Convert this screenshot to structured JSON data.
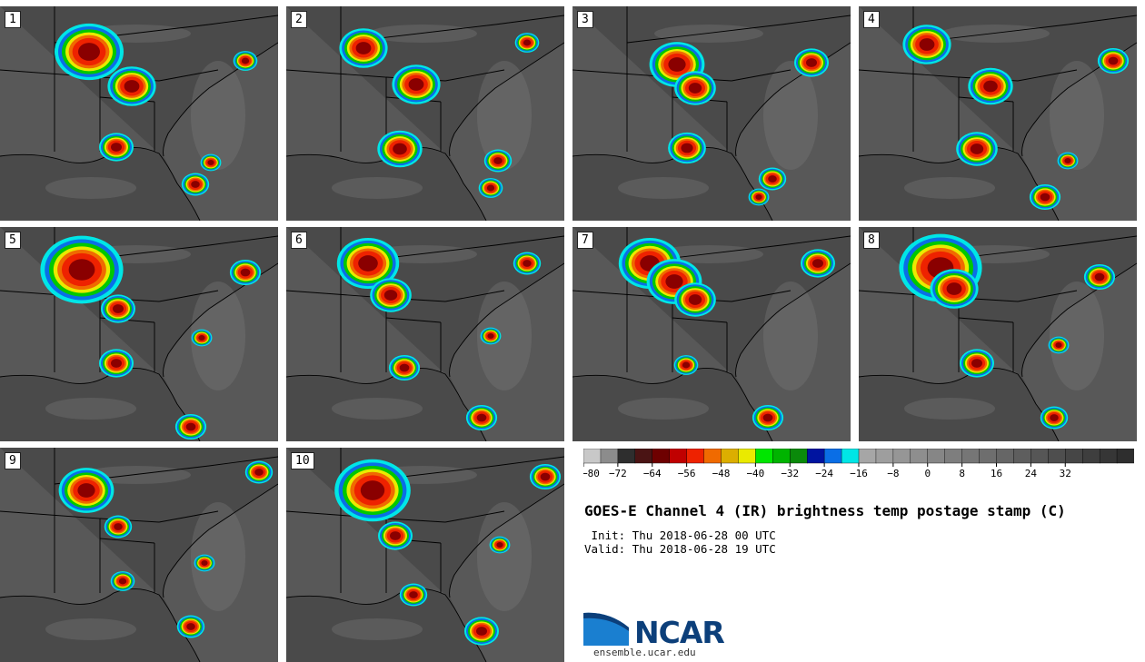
{
  "panels": [
    {
      "label": "1"
    },
    {
      "label": "2"
    },
    {
      "label": "3"
    },
    {
      "label": "4"
    },
    {
      "label": "5"
    },
    {
      "label": "6"
    },
    {
      "label": "7"
    },
    {
      "label": "8"
    },
    {
      "label": "9"
    },
    {
      "label": "10"
    }
  ],
  "colorbar": {
    "colors": [
      "#c8c8c8",
      "#8c8c8c",
      "#2e2e2e",
      "#4a1414",
      "#6e0000",
      "#c00000",
      "#ee2200",
      "#f06a00",
      "#dcae00",
      "#eaea00",
      "#00e600",
      "#00b400",
      "#0a8a0a",
      "#0014a0",
      "#0a6ee6",
      "#00e6e6",
      "#a6a6a6",
      "#9e9e9e",
      "#969696",
      "#8e8e8e",
      "#868686",
      "#7e7e7e",
      "#767676",
      "#6e6e6e",
      "#666666",
      "#5e5e5e",
      "#565656",
      "#4e4e4e",
      "#464646",
      "#3e3e3e",
      "#363636",
      "#2e2e2e"
    ],
    "tick_labels": [
      "−80",
      "−72",
      "−64",
      "−56",
      "−48",
      "−40",
      "−32",
      "−24",
      "−16",
      "−8",
      "0",
      "8",
      "16",
      "24",
      "32"
    ]
  },
  "title": "GOES-E Channel 4 (IR) brightness temp postage stamp (C)",
  "init_line": " Init: Thu 2018-06-28 00 UTC",
  "valid_line": "Valid: Thu 2018-06-28 19 UTC",
  "logo_text": "NCAR",
  "site_url": "ensemble.ucar.edu"
}
